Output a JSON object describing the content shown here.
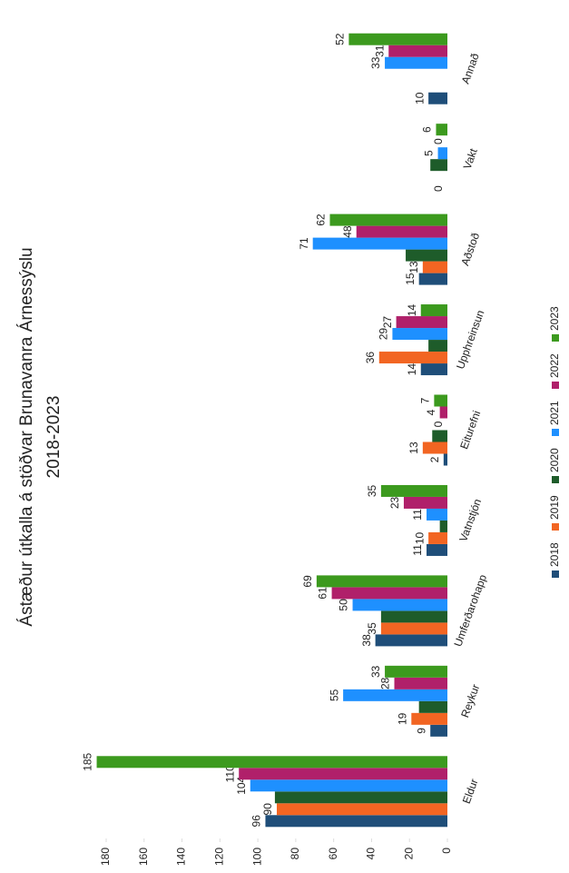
{
  "chart_data": {
    "type": "bar",
    "title": "Ástæður útkalla á stöðvar Brunavanra Árnessýslu",
    "subtitle": "2018-2023",
    "categories": [
      "Eldur",
      "Reykur",
      "Umferðarohapp",
      "Vatnstjón",
      "Eiturefni",
      "Upphreinsun",
      "Aðstoð",
      "Vakt",
      "Annað"
    ],
    "series": [
      {
        "name": "2018",
        "color": "#1f4e79",
        "values": [
          96,
          9,
          38,
          11,
          2,
          14,
          15,
          0,
          10
        ],
        "value_labels": [
          "96",
          "9",
          "38",
          "11",
          "2",
          "14",
          "15",
          "0",
          "10"
        ]
      },
      {
        "name": "2019",
        "color": "#f26522",
        "values": [
          90,
          19,
          35,
          10,
          13,
          36,
          13,
          0,
          0
        ],
        "value_labels": [
          "90",
          "19",
          "35",
          "10",
          "13",
          "36",
          "13",
          null,
          null
        ]
      },
      {
        "name": "2020",
        "color": "#1e5c2a",
        "values": [
          91,
          15,
          35,
          4,
          8,
          10,
          22,
          9,
          0
        ],
        "value_labels": [
          null,
          null,
          null,
          null,
          null,
          null,
          null,
          null,
          null
        ]
      },
      {
        "name": "2021",
        "color": "#1e90ff",
        "values": [
          104,
          55,
          50,
          11,
          0,
          29,
          71,
          5,
          33
        ],
        "value_labels": [
          "104",
          "55",
          "50",
          "11",
          "0",
          "29",
          "71",
          "5",
          "33"
        ]
      },
      {
        "name": "2022",
        "color": "#b0206a",
        "values": [
          110,
          28,
          61,
          23,
          4,
          27,
          48,
          0,
          31
        ],
        "value_labels": [
          "110",
          "28",
          "61",
          "23",
          "4",
          "27",
          "48",
          "0",
          "31"
        ]
      },
      {
        "name": "2023",
        "color": "#3c9a1e",
        "values": [
          185,
          33,
          69,
          35,
          7,
          14,
          62,
          6,
          52
        ],
        "value_labels": [
          "185",
          "33",
          "69",
          "35",
          "7",
          "14",
          "62",
          "6",
          "52"
        ]
      }
    ],
    "ylim": [
      0,
      180
    ],
    "yticks": [
      0,
      20,
      40,
      60,
      80,
      100,
      120,
      140,
      160,
      180
    ],
    "grid": false,
    "legend": "bottom"
  }
}
